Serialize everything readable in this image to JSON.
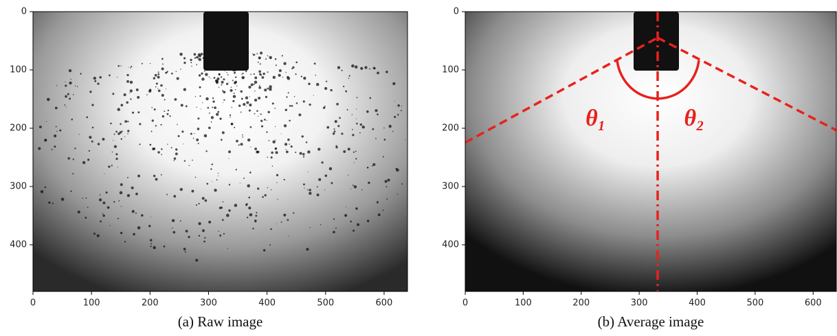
{
  "chart_data": [
    {
      "type": "image",
      "caption": "(a) Raw image",
      "xlim": [
        0,
        640
      ],
      "ylim": [
        480,
        0
      ],
      "xticks": [
        0,
        100,
        200,
        300,
        400,
        500,
        600
      ],
      "yticks": [
        0,
        100,
        200,
        300,
        400
      ]
    },
    {
      "type": "image",
      "caption": "(b) Average image",
      "xlim": [
        0,
        640
      ],
      "ylim": [
        480,
        0
      ],
      "xticks": [
        0,
        100,
        200,
        300,
        400,
        500,
        600
      ],
      "yticks": [
        0,
        100,
        200,
        300,
        400
      ],
      "annotations": [
        "θ₁",
        "θ₂"
      ]
    }
  ]
}
